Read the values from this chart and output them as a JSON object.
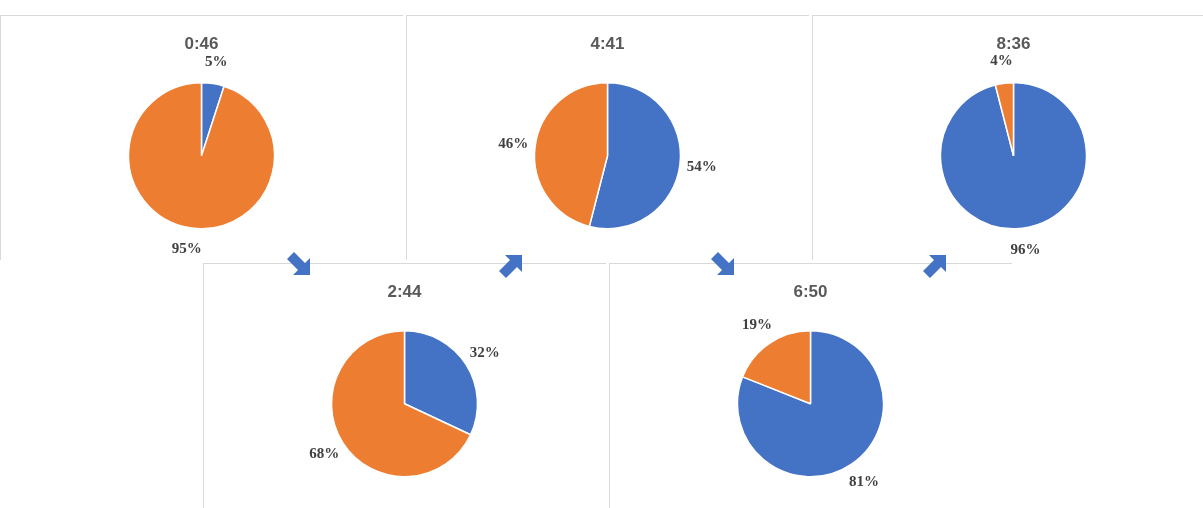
{
  "chart_data": [
    {
      "type": "pie",
      "title": "0:46",
      "categories": [
        null,
        null
      ],
      "values": [
        5,
        95
      ],
      "colors": [
        "#4472c4",
        "#ed7d31"
      ],
      "value_labels": [
        "5%",
        "95%"
      ]
    },
    {
      "type": "pie",
      "title": "2:44",
      "categories": [
        null,
        null
      ],
      "values": [
        32,
        68
      ],
      "colors": [
        "#4472c4",
        "#ed7d31"
      ],
      "value_labels": [
        "32%",
        "68%"
      ]
    },
    {
      "type": "pie",
      "title": "4:41",
      "categories": [
        null,
        null
      ],
      "values": [
        54,
        46
      ],
      "colors": [
        "#4472c4",
        "#ed7d31"
      ],
      "value_labels": [
        "54%",
        "46%"
      ]
    },
    {
      "type": "pie",
      "title": "6:50",
      "categories": [
        null,
        null
      ],
      "values": [
        81,
        19
      ],
      "colors": [
        "#4472c4",
        "#ed7d31"
      ],
      "value_labels": [
        "81%",
        "19%"
      ]
    },
    {
      "type": "pie",
      "title": "8:36",
      "categories": [
        null,
        null
      ],
      "values": [
        96,
        4
      ],
      "colors": [
        "#4472c4",
        "#ed7d31"
      ],
      "value_labels": [
        "96%",
        "4%"
      ]
    }
  ]
}
